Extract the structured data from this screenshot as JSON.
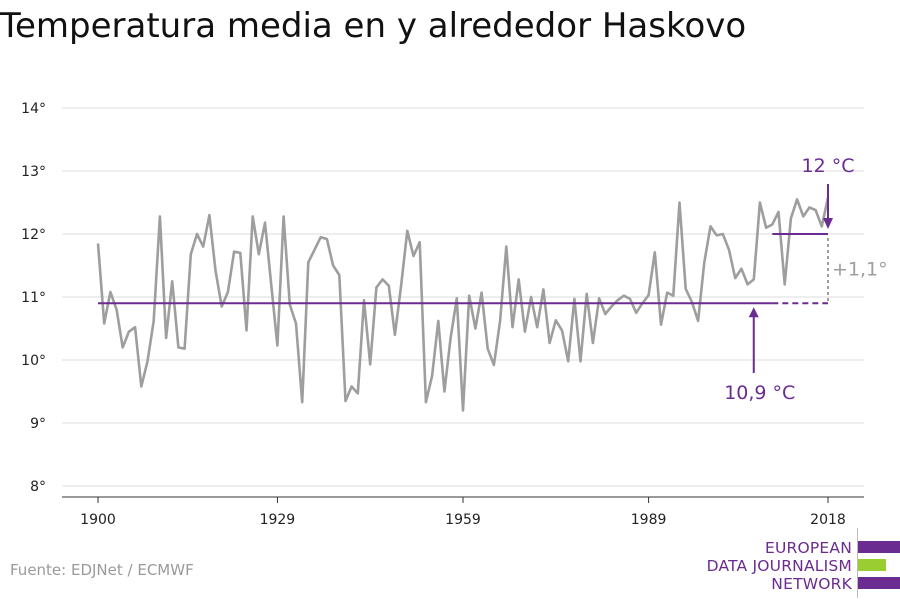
{
  "title": "Temperatura media en y alrededor Haskovo",
  "source": "Fuente: EDJNet / ECMWF",
  "logo": {
    "line1": "EUROPEAN",
    "line2": "DATA JOURNALISM",
    "line3": "NETWORK"
  },
  "colors": {
    "series": "#9e9e9e",
    "accent": "#6a2c91",
    "logo_green": "#9acd32",
    "grid": "#dcdcdc"
  },
  "chart_data": {
    "type": "line",
    "title": "Temperatura media en y alrededor Haskovo",
    "xlabel": "",
    "ylabel": "",
    "x_ticks": [
      1900,
      1929,
      1959,
      1989,
      2018
    ],
    "y_ticks": [
      8,
      9,
      10,
      11,
      12,
      13,
      14
    ],
    "y_tick_labels": [
      "8°",
      "9°",
      "10°",
      "11°",
      "12°",
      "13°",
      "14°"
    ],
    "xlim": [
      1900,
      2018
    ],
    "ylim": [
      8,
      14
    ],
    "grid": true,
    "series": [
      {
        "x": [
          1900,
          1901,
          1902,
          1903,
          1904,
          1905,
          1906,
          1907,
          1908,
          1909,
          1910,
          1911,
          1912,
          1913,
          1914,
          1915,
          1916,
          1917,
          1918,
          1919,
          1920,
          1921,
          1922,
          1923,
          1924,
          1925,
          1926,
          1927,
          1928,
          1929,
          1930,
          1931,
          1932,
          1933,
          1934,
          1935,
          1936,
          1937,
          1938,
          1939,
          1940,
          1941,
          1942,
          1943,
          1944,
          1945,
          1946,
          1947,
          1948,
          1949,
          1950,
          1951,
          1952,
          1953,
          1954,
          1955,
          1956,
          1957,
          1958,
          1959,
          1960,
          1961,
          1962,
          1963,
          1964,
          1965,
          1966,
          1967,
          1968,
          1969,
          1970,
          1971,
          1972,
          1973,
          1974,
          1975,
          1976,
          1977,
          1978,
          1979,
          1980,
          1981,
          1982,
          1983,
          1984,
          1985,
          1986,
          1987,
          1988,
          1989,
          1990,
          1991,
          1992,
          1993,
          1994,
          1995,
          1996,
          1997,
          1998,
          1999,
          2000,
          2001,
          2002,
          2003,
          2004,
          2005,
          2006,
          2007,
          2008,
          2009,
          2010,
          2011,
          2012,
          2013,
          2014,
          2015,
          2016,
          2017,
          2018
        ],
        "values": [
          11.85,
          10.58,
          11.08,
          10.8,
          10.2,
          10.45,
          10.52,
          9.58,
          9.98,
          10.62,
          12.28,
          10.35,
          11.25,
          10.2,
          10.18,
          11.68,
          12.0,
          11.8,
          12.3,
          11.42,
          10.85,
          11.08,
          11.72,
          11.7,
          10.47,
          12.28,
          11.68,
          12.18,
          11.2,
          10.23,
          12.28,
          10.88,
          10.58,
          9.33,
          11.55,
          11.75,
          11.95,
          11.92,
          11.5,
          11.35,
          9.35,
          9.58,
          9.47,
          10.95,
          9.93,
          11.15,
          11.28,
          11.18,
          10.4,
          11.18,
          12.05,
          11.65,
          11.87,
          9.33,
          9.75,
          10.62,
          9.5,
          10.35,
          10.98,
          9.2,
          11.02,
          10.5,
          11.07,
          10.18,
          9.92,
          10.62,
          11.8,
          10.52,
          11.28,
          10.45,
          11.0,
          10.52,
          11.12,
          10.27,
          10.63,
          10.47,
          9.98,
          10.97,
          9.98,
          11.05,
          10.27,
          10.98,
          10.73,
          10.85,
          10.95,
          11.02,
          10.97,
          10.75,
          10.9,
          11.03,
          11.71,
          10.56,
          11.07,
          11.02,
          12.5,
          11.13,
          10.92,
          10.62,
          11.55,
          12.12,
          11.98,
          12.0,
          11.75,
          11.3,
          11.45,
          11.2,
          11.28,
          12.5,
          12.1,
          12.15,
          12.35,
          11.2,
          12.25,
          12.55,
          12.28,
          12.42,
          12.38,
          12.12,
          12.58
        ]
      }
    ],
    "annotations": {
      "baseline_value": 10.9,
      "baseline_label": "10,9 °C",
      "recent_value": 12.0,
      "recent_label": "12 °C",
      "recent_start_year": 2009,
      "difference_label": "+1,1°"
    }
  }
}
